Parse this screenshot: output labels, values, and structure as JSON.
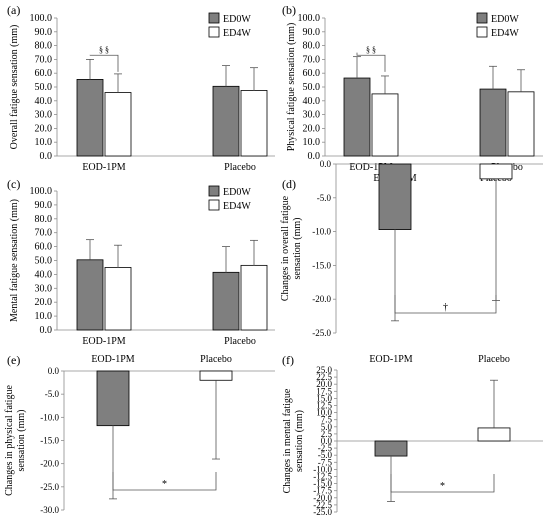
{
  "legend": {
    "ed0w": "ED0W",
    "ed4w": "ED4W"
  },
  "colors": {
    "ed0w": "#7f7f7f",
    "ed4w": "#ffffff",
    "axis": "#8c8c8c",
    "bar_stroke": "#000000"
  },
  "chart_data": [
    {
      "panel": "(a)",
      "type": "bar",
      "ylabel": "Overall fatigue sensation (mm)",
      "ylim": [
        0,
        100
      ],
      "tick_step": 10,
      "tick_decimals": 1,
      "categories": [
        "EOD-1PM",
        "Placebo"
      ],
      "series": [
        {
          "name": "ED0W",
          "values": [
            55.5,
            50.5
          ],
          "errors": [
            14.5,
            15.0
          ]
        },
        {
          "name": "ED4W",
          "values": [
            46.0,
            47.5
          ],
          "errors": [
            13.5,
            16.5
          ]
        }
      ],
      "legend_placement": "top-right",
      "annotations": [
        {
          "text": "§ §",
          "between": "EOD-1PM ED0W–ED4W"
        }
      ]
    },
    {
      "panel": "(b)",
      "type": "bar",
      "ylabel": "Physical fatigue sensation (mm)",
      "ylim": [
        0,
        100
      ],
      "tick_step": 10,
      "tick_decimals": 1,
      "categories": [
        "EOD-1PM",
        "Placebo"
      ],
      "series": [
        {
          "name": "ED0W",
          "values": [
            56.5,
            48.5
          ],
          "errors": [
            15.5,
            16.5
          ]
        },
        {
          "name": "ED4W",
          "values": [
            45.0,
            46.5
          ],
          "errors": [
            13.0,
            16.0
          ]
        }
      ],
      "legend_placement": "top-right",
      "annotations": [
        {
          "text": "§ §",
          "between": "EOD-1PM ED0W–ED4W"
        }
      ]
    },
    {
      "panel": "(c)",
      "type": "bar",
      "ylabel": "Mental fatigue sensation (mm)",
      "ylim": [
        0,
        100
      ],
      "tick_step": 10,
      "tick_decimals": 1,
      "categories": [
        "EOD-1PM",
        "Placebo"
      ],
      "series": [
        {
          "name": "ED0W",
          "values": [
            50.5,
            41.5
          ],
          "errors": [
            14.5,
            18.5
          ]
        },
        {
          "name": "ED4W",
          "values": [
            45.0,
            46.5
          ],
          "errors": [
            16.0,
            18.0
          ]
        }
      ],
      "legend_placement": "top-right"
    },
    {
      "panel": "(d)",
      "type": "bar",
      "ylabel": "Changes in overall fatigue sensation (mm)",
      "ylim": [
        -25,
        0
      ],
      "tick_step": 5,
      "tick_decimals": 1,
      "categories": [
        "EOD-1PM",
        "Placebo"
      ],
      "values": [
        -9.7,
        -2.2
      ],
      "errors": [
        13.5,
        18.0
      ],
      "fills": [
        "ed0w",
        "ed4w"
      ],
      "annotations": [
        {
          "text": "†",
          "between": "EOD-1PM–Placebo"
        }
      ]
    },
    {
      "panel": "(e)",
      "type": "bar",
      "ylabel": "Changes in physical fatigue sensation (mm)",
      "ylim": [
        -30,
        0
      ],
      "tick_step": 5,
      "tick_decimals": 1,
      "categories": [
        "EOD-1PM",
        "Placebo"
      ],
      "values": [
        -11.8,
        -2.0
      ],
      "errors": [
        15.8,
        17.0
      ],
      "fills": [
        "ed0w",
        "ed4w"
      ],
      "annotations": [
        {
          "text": "*",
          "between": "EOD-1PM–Placebo"
        }
      ]
    },
    {
      "panel": "(f)",
      "type": "bar",
      "ylabel": "Changes in mental fatigue sensation (mm)",
      "ylim": [
        -25,
        25
      ],
      "tick_step": 2.5,
      "tick_decimals": 1,
      "categories": [
        "EOD-1PM",
        "Placebo"
      ],
      "values": [
        -5.3,
        4.6
      ],
      "errors": [
        16.0,
        16.8
      ],
      "fills": [
        "ed0w",
        "ed4w"
      ],
      "annotations": [
        {
          "text": "*",
          "between": "EOD-1PM–Placebo"
        }
      ]
    }
  ]
}
